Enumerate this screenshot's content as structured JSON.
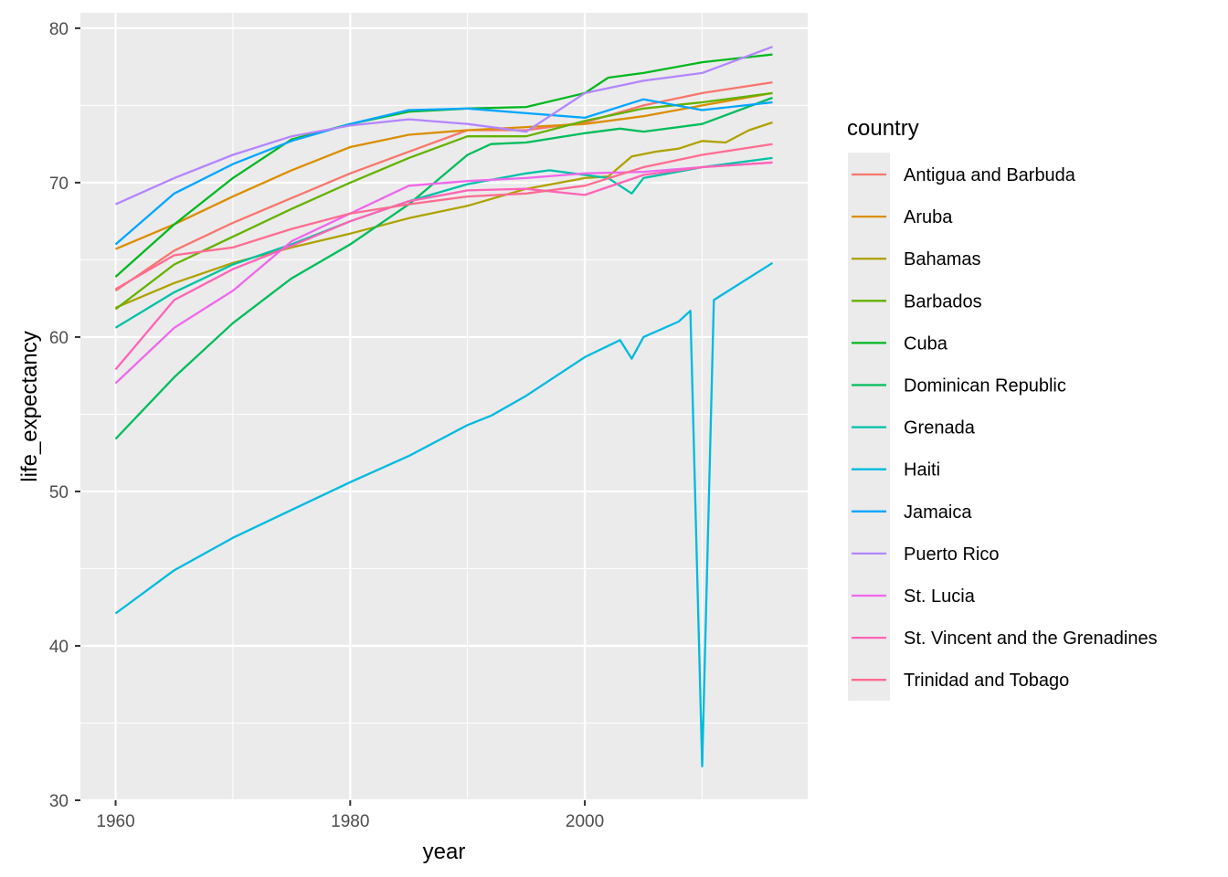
{
  "chart_data": {
    "type": "line",
    "xlabel": "year",
    "ylabel": "life_expectancy",
    "xlim": [
      1957,
      2019
    ],
    "ylim": [
      30,
      81
    ],
    "x_ticks": [
      1960,
      1980,
      2000
    ],
    "y_ticks": [
      30,
      40,
      50,
      60,
      70,
      80
    ],
    "x_tick_labels": [
      "1960",
      "1980",
      "2000"
    ],
    "y_tick_labels": [
      "30",
      "40",
      "50",
      "60",
      "70",
      "80"
    ],
    "grid": true,
    "legend_placement": "right",
    "legend_title": "country",
    "series": [
      {
        "name": "Antigua and Barbuda",
        "color": "#F8766D",
        "x": [
          1960,
          1965,
          1970,
          1975,
          1980,
          1985,
          1990,
          1995,
          2000,
          2005,
          2010,
          2016
        ],
        "y": [
          63.0,
          65.6,
          67.4,
          69.0,
          70.6,
          72.0,
          73.4,
          73.4,
          73.9,
          75.0,
          75.8,
          76.5
        ]
      },
      {
        "name": "Aruba",
        "color": "#DB8E00",
        "x": [
          1960,
          1965,
          1970,
          1975,
          1980,
          1985,
          1990,
          1995,
          2000,
          2005,
          2010,
          2016
        ],
        "y": [
          65.7,
          67.3,
          69.1,
          70.8,
          72.3,
          73.1,
          73.4,
          73.6,
          73.8,
          74.3,
          75.0,
          75.8
        ]
      },
      {
        "name": "Bahamas",
        "color": "#AEA200",
        "x": [
          1960,
          1965,
          1970,
          1975,
          1980,
          1985,
          1990,
          1995,
          2000,
          2002,
          2004,
          2006,
          2008,
          2010,
          2012,
          2014,
          2016
        ],
        "y": [
          61.9,
          63.5,
          64.8,
          65.8,
          66.7,
          67.7,
          68.5,
          69.6,
          70.3,
          70.4,
          71.7,
          72.0,
          72.2,
          72.7,
          72.6,
          73.4,
          73.9
        ]
      },
      {
        "name": "Barbados",
        "color": "#64B200",
        "x": [
          1960,
          1965,
          1970,
          1975,
          1980,
          1985,
          1990,
          1995,
          2000,
          2005,
          2010,
          2016
        ],
        "y": [
          61.8,
          64.7,
          66.5,
          68.3,
          70.0,
          71.6,
          73.0,
          73.0,
          74.0,
          74.8,
          75.2,
          75.8
        ]
      },
      {
        "name": "Cuba",
        "color": "#00B81F",
        "x": [
          1960,
          1965,
          1970,
          1975,
          1980,
          1985,
          1990,
          1995,
          2000,
          2002,
          2005,
          2010,
          2016
        ],
        "y": [
          63.9,
          67.3,
          70.3,
          72.8,
          73.8,
          74.6,
          74.8,
          74.9,
          75.8,
          76.8,
          77.1,
          77.8,
          78.3
        ]
      },
      {
        "name": "Dominican Republic",
        "color": "#00BD5C",
        "x": [
          1960,
          1965,
          1970,
          1975,
          1980,
          1985,
          1990,
          1992,
          1995,
          2000,
          2003,
          2005,
          2010,
          2016
        ],
        "y": [
          53.4,
          57.4,
          60.9,
          63.8,
          66.0,
          68.6,
          71.8,
          72.5,
          72.6,
          73.2,
          73.5,
          73.3,
          73.8,
          75.5
        ]
      },
      {
        "name": "Grenada",
        "color": "#00C1A7",
        "x": [
          1960,
          1965,
          1970,
          1975,
          1980,
          1985,
          1990,
          1995,
          1997,
          2000,
          2002,
          2004,
          2005,
          2010,
          2016
        ],
        "y": [
          60.6,
          62.9,
          64.7,
          66.0,
          67.5,
          68.8,
          69.9,
          70.6,
          70.8,
          70.5,
          70.3,
          69.3,
          70.3,
          71.0,
          71.6
        ]
      },
      {
        "name": "Haiti",
        "color": "#00BADE",
        "x": [
          1960,
          1965,
          1970,
          1975,
          1980,
          1985,
          1990,
          1992,
          1995,
          2000,
          2003,
          2004,
          2005,
          2008,
          2009,
          2010,
          2011,
          2016
        ],
        "y": [
          42.1,
          44.9,
          47.0,
          48.8,
          50.6,
          52.3,
          54.3,
          54.9,
          56.2,
          58.7,
          59.8,
          58.6,
          60.0,
          61.0,
          61.7,
          32.2,
          62.4,
          64.8
        ]
      },
      {
        "name": "Jamaica",
        "color": "#00A6FF",
        "x": [
          1960,
          1965,
          1970,
          1975,
          1980,
          1985,
          1990,
          1995,
          2000,
          2005,
          2010,
          2016
        ],
        "y": [
          66.0,
          69.3,
          71.2,
          72.7,
          73.8,
          74.7,
          74.8,
          74.5,
          74.2,
          75.4,
          74.7,
          75.2
        ]
      },
      {
        "name": "Puerto Rico",
        "color": "#B385FF",
        "x": [
          1960,
          1965,
          1970,
          1975,
          1980,
          1985,
          1990,
          1995,
          2000,
          2005,
          2010,
          2016
        ],
        "y": [
          68.6,
          70.3,
          71.8,
          73.0,
          73.7,
          74.1,
          73.8,
          73.3,
          75.8,
          76.6,
          77.1,
          78.8
        ]
      },
      {
        "name": "St. Lucia",
        "color": "#EF67EB",
        "x": [
          1960,
          1965,
          1970,
          1975,
          1980,
          1985,
          1990,
          1995,
          2000,
          2005,
          2010,
          2016
        ],
        "y": [
          57.0,
          60.6,
          63.0,
          66.2,
          68.0,
          69.8,
          70.1,
          70.3,
          70.6,
          70.7,
          71.0,
          71.3
        ]
      },
      {
        "name": "St. Vincent and the Grenadines",
        "color": "#FF63B6",
        "x": [
          1960,
          1965,
          1970,
          1975,
          1980,
          1985,
          1990,
          1995,
          2000,
          2005,
          2010,
          2016
        ],
        "y": [
          57.9,
          62.4,
          64.4,
          65.9,
          67.5,
          68.8,
          69.5,
          69.6,
          69.2,
          70.5,
          71.0,
          71.3
        ]
      },
      {
        "name": "Trinidad and Tobago",
        "color": "#FF6C91",
        "x": [
          1960,
          1965,
          1970,
          1975,
          1980,
          1985,
          1990,
          1995,
          2000,
          2005,
          2010,
          2016
        ],
        "y": [
          63.1,
          65.3,
          65.8,
          67.0,
          68.0,
          68.6,
          69.1,
          69.3,
          69.8,
          71.0,
          71.8,
          72.5
        ]
      }
    ]
  }
}
